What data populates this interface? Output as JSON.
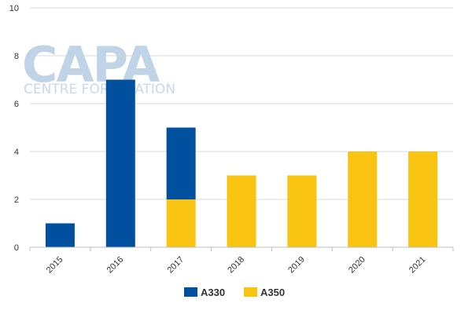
{
  "watermark": {
    "logo_text": "CAPA",
    "tagline": "CENTRE FOR AVIATION"
  },
  "chart_data": {
    "type": "bar",
    "stacked": true,
    "categories": [
      "2015",
      "2016",
      "2017",
      "2018",
      "2019",
      "2020",
      "2021"
    ],
    "series": [
      {
        "name": "A330",
        "color": "#0050a0",
        "values": [
          1,
          7,
          3,
          0,
          0,
          0,
          0
        ]
      },
      {
        "name": "A350",
        "color": "#f9c312",
        "values": [
          0,
          0,
          2,
          3,
          3,
          4,
          4
        ]
      }
    ],
    "ylim": [
      0,
      10
    ],
    "yticks": [
      0,
      2,
      4,
      6,
      8,
      10
    ],
    "grid": true,
    "legend_position": "bottom",
    "title": "",
    "xlabel": "",
    "ylabel": ""
  }
}
